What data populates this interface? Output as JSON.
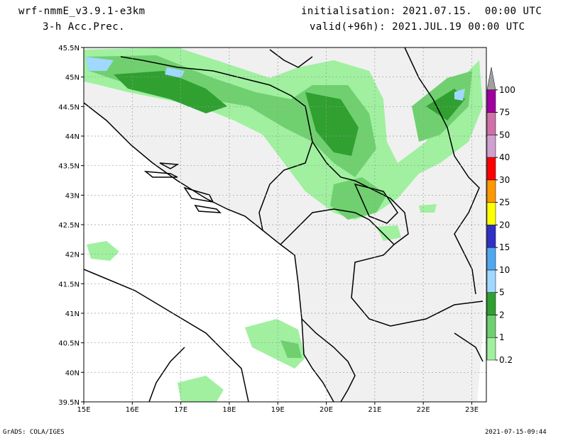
{
  "header": {
    "model": "wrf-nmmE_v3.9.1-e3km",
    "field": "3-h Acc.Prec.",
    "init": "initialisation: 2021.07.15.  00:00 UTC",
    "valid": "valid(+96h): 2021.JUL.19 00:00 UTC"
  },
  "footer": {
    "left": "GrADS: COLA/IGES",
    "right": "2021-07-15-09:44"
  },
  "map": {
    "lat_labels": [
      "45.5N",
      "45N",
      "44.5N",
      "44N",
      "43.5N",
      "43N",
      "42.5N",
      "42N",
      "41.5N",
      "41N",
      "40.5N",
      "40N",
      "39.5N"
    ],
    "lon_labels": [
      "15E",
      "16E",
      "17E",
      "18E",
      "19E",
      "20E",
      "21E",
      "22E",
      "23E"
    ],
    "lat_range": [
      39.5,
      45.5
    ],
    "lon_range": [
      15,
      23.3
    ],
    "grid": true
  },
  "colorbar": {
    "levels": [
      "0.2",
      "1",
      "2",
      "5",
      "10",
      "15",
      "20",
      "25",
      "30",
      "40",
      "50",
      "75",
      "100"
    ],
    "colors": [
      "#a0f0a0",
      "#70d070",
      "#30a030",
      "#a0d8ff",
      "#50a8f0",
      "#3030c8",
      "#ffff00",
      "#ff9800",
      "#ff0000",
      "#d0a0d0",
      "#d070a8",
      "#a000a0",
      "#a0a0a0"
    ]
  },
  "colors": {
    "land": "#f0f0f0",
    "sea": "#ffffff",
    "border": "#000000"
  }
}
